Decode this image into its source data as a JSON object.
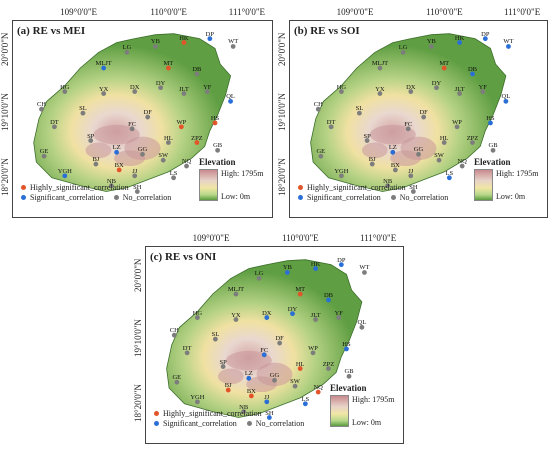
{
  "panels": [
    {
      "title": "(a) RE vs MEI",
      "lon_ticks": [
        "109°0'0\"E",
        "110°0'0\"E",
        "111°0'0\"E"
      ],
      "lat_ticks": [
        "20°0'0\"N",
        "19°10'0\"N",
        "18°20'0\"N"
      ],
      "stations": [
        {
          "id": "HK",
          "cls": "high"
        },
        {
          "id": "DP",
          "cls": "sig"
        },
        {
          "id": "WT",
          "cls": "none"
        },
        {
          "id": "YB",
          "cls": "none"
        },
        {
          "id": "LG",
          "cls": "none"
        },
        {
          "id": "MLJT",
          "cls": "sig"
        },
        {
          "id": "MT",
          "cls": "high"
        },
        {
          "id": "DB",
          "cls": "none"
        },
        {
          "id": "HG",
          "cls": "none"
        },
        {
          "id": "YX",
          "cls": "none"
        },
        {
          "id": "DX",
          "cls": "none"
        },
        {
          "id": "DY",
          "cls": "none"
        },
        {
          "id": "JLT",
          "cls": "none"
        },
        {
          "id": "YF",
          "cls": "none"
        },
        {
          "id": "QL",
          "cls": "sig"
        },
        {
          "id": "CH",
          "cls": "none"
        },
        {
          "id": "SL",
          "cls": "none"
        },
        {
          "id": "DF",
          "cls": "none"
        },
        {
          "id": "HS",
          "cls": "high"
        },
        {
          "id": "DT",
          "cls": "none"
        },
        {
          "id": "FC",
          "cls": "none"
        },
        {
          "id": "WP",
          "cls": "high"
        },
        {
          "id": "SP",
          "cls": "none"
        },
        {
          "id": "HL",
          "cls": "none"
        },
        {
          "id": "ZPZ",
          "cls": "high"
        },
        {
          "id": "GB",
          "cls": "none"
        },
        {
          "id": "LZ",
          "cls": "sig"
        },
        {
          "id": "GG",
          "cls": "none"
        },
        {
          "id": "GE",
          "cls": "none"
        },
        {
          "id": "BJ",
          "cls": "none"
        },
        {
          "id": "SW",
          "cls": "none"
        },
        {
          "id": "NQ",
          "cls": "none"
        },
        {
          "id": "BX",
          "cls": "high"
        },
        {
          "id": "JJ",
          "cls": "none"
        },
        {
          "id": "YGH",
          "cls": "sig"
        },
        {
          "id": "LS",
          "cls": "none"
        },
        {
          "id": "NB",
          "cls": "none"
        },
        {
          "id": "SH",
          "cls": "none"
        }
      ]
    },
    {
      "title": "(b) RE vs SOI",
      "lon_ticks": [
        "109°0'0\"E",
        "110°0'0\"E",
        "111°0'0\"E"
      ],
      "lat_ticks": [
        "20°0'0\"N",
        "19°10'0\"N",
        "18°20'0\"N"
      ],
      "stations": [
        {
          "id": "HK",
          "cls": "sig"
        },
        {
          "id": "DP",
          "cls": "sig"
        },
        {
          "id": "WT",
          "cls": "sig"
        },
        {
          "id": "YB",
          "cls": "none"
        },
        {
          "id": "LG",
          "cls": "none"
        },
        {
          "id": "MLJT",
          "cls": "none"
        },
        {
          "id": "MT",
          "cls": "high"
        },
        {
          "id": "DB",
          "cls": "sig"
        },
        {
          "id": "HG",
          "cls": "none"
        },
        {
          "id": "YX",
          "cls": "none"
        },
        {
          "id": "DX",
          "cls": "none"
        },
        {
          "id": "DY",
          "cls": "none"
        },
        {
          "id": "JLT",
          "cls": "none"
        },
        {
          "id": "YF",
          "cls": "none"
        },
        {
          "id": "QL",
          "cls": "sig"
        },
        {
          "id": "CH",
          "cls": "none"
        },
        {
          "id": "SL",
          "cls": "none"
        },
        {
          "id": "DF",
          "cls": "none"
        },
        {
          "id": "HS",
          "cls": "sig"
        },
        {
          "id": "DT",
          "cls": "none"
        },
        {
          "id": "FC",
          "cls": "none"
        },
        {
          "id": "WP",
          "cls": "none"
        },
        {
          "id": "SP",
          "cls": "none"
        },
        {
          "id": "HL",
          "cls": "none"
        },
        {
          "id": "ZPZ",
          "cls": "none"
        },
        {
          "id": "GB",
          "cls": "none"
        },
        {
          "id": "LZ",
          "cls": "sig"
        },
        {
          "id": "GG",
          "cls": "none"
        },
        {
          "id": "GE",
          "cls": "none"
        },
        {
          "id": "BJ",
          "cls": "none"
        },
        {
          "id": "SW",
          "cls": "none"
        },
        {
          "id": "NQ",
          "cls": "none"
        },
        {
          "id": "BX",
          "cls": "none"
        },
        {
          "id": "JJ",
          "cls": "none"
        },
        {
          "id": "YGH",
          "cls": "none"
        },
        {
          "id": "LS",
          "cls": "sig"
        },
        {
          "id": "NB",
          "cls": "none"
        },
        {
          "id": "SH",
          "cls": "none"
        }
      ]
    },
    {
      "title": "(c) RE vs ONI",
      "lon_ticks": [
        "109°0'0\"E",
        "110°0'0\"E",
        "111°0'0\"E"
      ],
      "lat_ticks": [
        "20°0'0\"N",
        "19°10'0\"N",
        "18°20'0\"N"
      ],
      "stations": [
        {
          "id": "HK",
          "cls": "sig"
        },
        {
          "id": "DP",
          "cls": "sig"
        },
        {
          "id": "WT",
          "cls": "none"
        },
        {
          "id": "YB",
          "cls": "sig"
        },
        {
          "id": "LG",
          "cls": "none"
        },
        {
          "id": "MLJT",
          "cls": "none"
        },
        {
          "id": "MT",
          "cls": "high"
        },
        {
          "id": "DB",
          "cls": "sig"
        },
        {
          "id": "HG",
          "cls": "none"
        },
        {
          "id": "YX",
          "cls": "none"
        },
        {
          "id": "DX",
          "cls": "sig"
        },
        {
          "id": "DY",
          "cls": "sig"
        },
        {
          "id": "JLT",
          "cls": "none"
        },
        {
          "id": "YF",
          "cls": "none"
        },
        {
          "id": "QL",
          "cls": "none"
        },
        {
          "id": "CH",
          "cls": "none"
        },
        {
          "id": "SL",
          "cls": "none"
        },
        {
          "id": "DF",
          "cls": "none"
        },
        {
          "id": "HS",
          "cls": "sig"
        },
        {
          "id": "DT",
          "cls": "none"
        },
        {
          "id": "FC",
          "cls": "sig"
        },
        {
          "id": "WP",
          "cls": "none"
        },
        {
          "id": "SP",
          "cls": "none"
        },
        {
          "id": "HL",
          "cls": "high"
        },
        {
          "id": "ZPZ",
          "cls": "none"
        },
        {
          "id": "GB",
          "cls": "none"
        },
        {
          "id": "LZ",
          "cls": "sig"
        },
        {
          "id": "GG",
          "cls": "none"
        },
        {
          "id": "GE",
          "cls": "none"
        },
        {
          "id": "BJ",
          "cls": "high"
        },
        {
          "id": "SW",
          "cls": "none"
        },
        {
          "id": "NQ",
          "cls": "high"
        },
        {
          "id": "BX",
          "cls": "high"
        },
        {
          "id": "JJ",
          "cls": "sig"
        },
        {
          "id": "YGH",
          "cls": "none"
        },
        {
          "id": "LS",
          "cls": "sig"
        },
        {
          "id": "NB",
          "cls": "none"
        },
        {
          "id": "SH",
          "cls": "sig"
        }
      ]
    }
  ],
  "legend": {
    "elevation_title": "Elevation",
    "elevation_high": "High: 1795m",
    "elevation_low": "Low: 0m",
    "categories": [
      {
        "label": "Highly_significant_correlation",
        "color": "#e2542a"
      },
      {
        "label": "Significant_correlation",
        "color": "#2a6fd6"
      },
      {
        "label": "No_correlation",
        "color": "#7d7d7d"
      }
    ]
  },
  "colors": {
    "high": "#e2542a",
    "sig": "#2a6fd6",
    "none": "#7d7d7d"
  }
}
